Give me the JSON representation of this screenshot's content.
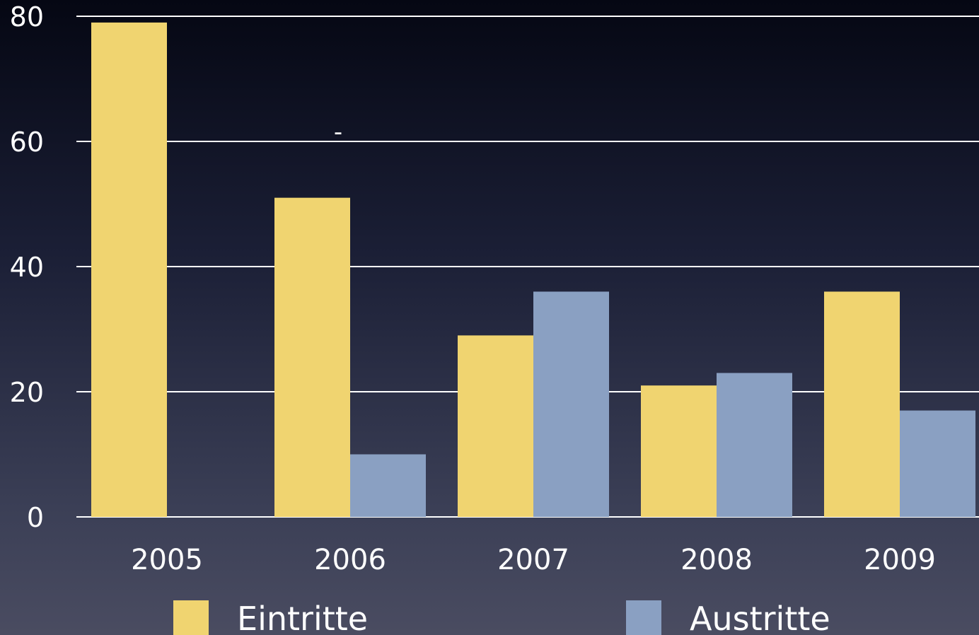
{
  "chart_data": {
    "type": "bar",
    "title": "",
    "xlabel": "",
    "ylabel": "",
    "categories": [
      "2005",
      "2006",
      "2007",
      "2008",
      "2009"
    ],
    "series": [
      {
        "name": "Eintritte",
        "values": [
          79,
          51,
          29,
          21,
          36
        ],
        "color": "#f0d470"
      },
      {
        "name": "Austritte",
        "values": [
          0,
          10,
          36,
          23,
          17
        ],
        "color": "#8aa0c2"
      }
    ],
    "ylim": [
      0,
      80
    ],
    "yticks": [
      "0",
      "20",
      "40",
      "60",
      "80"
    ],
    "grid": true,
    "legend": "bottom",
    "annotation": "-"
  },
  "colors": {
    "grid": "#ffffff",
    "text": "#ffffff"
  }
}
